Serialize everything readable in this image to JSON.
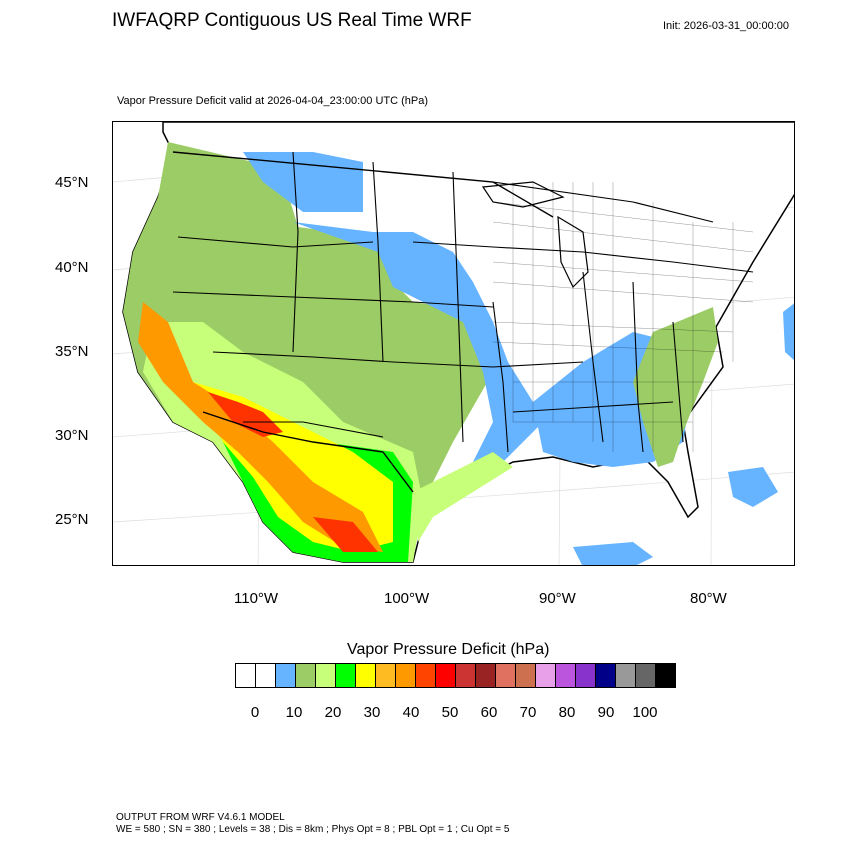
{
  "header": {
    "title": "IWFAQRP Contiguous US Real Time WRF",
    "init": "Init: 2026-03-31_00:00:00",
    "subtitle": "Vapor Pressure Deficit valid at 2026-04-04_23:00:00 UTC   (hPa)"
  },
  "map": {
    "lat_labels": [
      "45°N",
      "40°N",
      "35°N",
      "30°N",
      "25°N"
    ],
    "lon_labels": [
      "110°W",
      "100°W",
      "90°W",
      "80°W"
    ],
    "boundary_color": "#000000",
    "water_color": "#66b3ff"
  },
  "colorbar": {
    "title": "Vapor Pressure Deficit  (hPa)",
    "colors": [
      "#ffffff",
      "#ffffff",
      "#66b3ff",
      "#9ccc66",
      "#c8ff7a",
      "#00ff00",
      "#ffff00",
      "#ffbb22",
      "#ff9900",
      "#ff4400",
      "#ff0000",
      "#cc3333",
      "#992222",
      "#e07060",
      "#cc7050",
      "#e8a0e8",
      "#bb55dd",
      "#8833cc",
      "#000088",
      "#999999",
      "#666666",
      "#000000"
    ],
    "tick_labels": [
      "0",
      "10",
      "20",
      "30",
      "40",
      "50",
      "60",
      "70",
      "80",
      "90",
      "100"
    ]
  },
  "footer": {
    "line1": "OUTPUT FROM WRF V4.6.1 MODEL",
    "line2": "WE = 580 ; SN = 380 ; Levels = 38 ; Dis = 8km ; Phys Opt = 8 ; PBL Opt = 1 ; Cu Opt = 5"
  }
}
